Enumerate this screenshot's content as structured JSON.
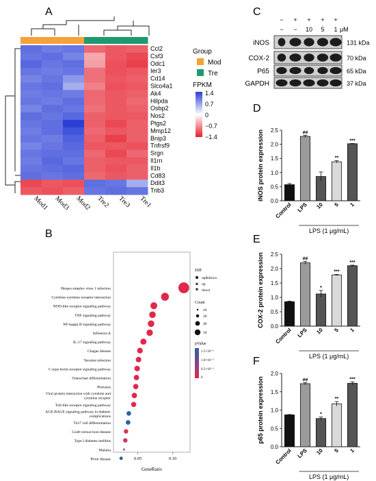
{
  "panels": {
    "a": "A",
    "b": "B",
    "c": "C",
    "d": "D",
    "e": "E",
    "f": "F"
  },
  "colors": {
    "mod": "#f7a13a",
    "tre": "#1f9a6e",
    "heat_high": "#2a3fd6",
    "heat_low": "#e5202e",
    "bar_black": "#111111",
    "bar_gray": "#9b9b9b",
    "bar_dark": "#555555",
    "bar_light": "#d9d9d9",
    "dot": "#e0284b"
  },
  "heatmap": {
    "genes": [
      "Ccl2",
      "Csf3",
      "Odc1",
      "Ier3",
      "Cd14",
      "Slco4a1",
      "Ak4",
      "Hilpda",
      "Osbp2",
      "Nos2",
      "Ptgs2",
      "Mmp12",
      "Bnip3",
      "Tnfrsf9",
      "Srgn",
      "Il1rn",
      "Il1b",
      "Cd83",
      "Ddit3",
      "Trib3"
    ],
    "samples": [
      "Mod1",
      "Mod3",
      "Mod2",
      "Tre2",
      "Tre3",
      "Tre1"
    ],
    "group_title": "Group",
    "group_legend": [
      "Mod",
      "Tre"
    ],
    "fpkm_title": "FPKM",
    "fpkm_ticks": [
      "1.4",
      "0.7",
      "0",
      "−0.7",
      "−1.4"
    ],
    "values": [
      [
        1.05,
        0.95,
        1.0,
        -0.95,
        -1.05,
        -1.0
      ],
      [
        1.0,
        1.05,
        0.9,
        -0.55,
        -1.05,
        -1.15
      ],
      [
        1.1,
        1.0,
        1.05,
        -0.6,
        -1.1,
        -1.2
      ],
      [
        1.0,
        0.95,
        1.0,
        -0.9,
        -1.1,
        -1.05
      ],
      [
        0.9,
        1.0,
        0.75,
        -0.9,
        -1.05,
        -1.0
      ],
      [
        1.0,
        1.05,
        0.6,
        -0.8,
        -1.1,
        -1.05
      ],
      [
        0.95,
        1.0,
        0.95,
        -0.95,
        -1.05,
        -1.0
      ],
      [
        1.0,
        0.95,
        1.05,
        -0.95,
        -1.05,
        -0.95
      ],
      [
        0.9,
        1.05,
        1.0,
        -0.9,
        -1.05,
        -1.0
      ],
      [
        1.05,
        1.0,
        1.1,
        -1.0,
        -1.05,
        -1.05
      ],
      [
        1.0,
        1.05,
        1.4,
        -1.0,
        -1.15,
        -1.0
      ],
      [
        0.95,
        1.05,
        1.25,
        -0.95,
        -1.05,
        -1.0
      ],
      [
        1.0,
        0.95,
        1.15,
        -1.0,
        -1.2,
        -1.0
      ],
      [
        0.9,
        1.0,
        1.1,
        -1.05,
        -1.05,
        -1.1
      ],
      [
        1.0,
        1.05,
        1.05,
        -0.95,
        -1.15,
        -0.95
      ],
      [
        0.95,
        1.1,
        1.0,
        -1.0,
        -1.05,
        -1.05
      ],
      [
        1.0,
        1.05,
        1.1,
        -1.0,
        -1.1,
        -1.0
      ],
      [
        1.05,
        1.0,
        1.05,
        -0.95,
        -1.05,
        -1.0
      ],
      [
        -1.15,
        -1.05,
        -1.1,
        1.05,
        1.0,
        0.6
      ],
      [
        -1.05,
        -1.1,
        -1.0,
        1.0,
        1.05,
        1.0
      ]
    ]
  },
  "blot": {
    "header_row1": [
      "−",
      "+",
      "+",
      "+",
      "+"
    ],
    "header_row2": [
      "−",
      "−",
      "10",
      "5",
      "1"
    ],
    "unit": "μM",
    "bands": [
      {
        "name": "iNOS",
        "kda": "131 kDa"
      },
      {
        "name": "COX-2",
        "kda": "70 kDa"
      },
      {
        "name": "P65",
        "kda": "65 kDa"
      },
      {
        "name": "GAPDH",
        "kda": "37 kDa"
      }
    ]
  },
  "chart_data": [
    {
      "type": "scatter",
      "panel": "B",
      "xlabel": "GeneRatio",
      "xticks": [
        "0.05",
        "0.10"
      ],
      "xlim": [
        0.015,
        0.125
      ],
      "categories": [
        "Herpes simplex virus 1 infection",
        "Cytokine-cytokine receptor interaction",
        "NOD-like receptor signaling pathway",
        "TNF signaling pathway",
        "NF-kappa B signaling pathway",
        "Influenza A",
        "IL-17 signaling pathway",
        "Chagas disease",
        "Yersinia infection",
        "C-type lectin receptor signaling pathway",
        "Osteoclast differentiation",
        "Pertussis",
        "Viral protein interaction with cytokine and cytokine receptor",
        "Toll-like receptor signaling pathway",
        "AGE-RAGE signaling pathway in diabetic complications",
        "Th17 cell differentiation",
        "Graft-versus-host disease",
        "Type I diabetes mellitus",
        "Malaria",
        "Prion disease"
      ],
      "gene_ratio": [
        0.116,
        0.089,
        0.073,
        0.071,
        0.069,
        0.067,
        0.058,
        0.053,
        0.051,
        0.049,
        0.048,
        0.047,
        0.045,
        0.044,
        0.037,
        0.036,
        0.033,
        0.032,
        0.03,
        0.026
      ],
      "count": [
        55,
        26,
        18,
        16,
        16,
        15,
        13,
        11,
        10,
        10,
        9,
        9,
        9,
        8,
        6,
        6,
        5,
        5,
        3,
        2
      ],
      "pvalue_color": [
        "#e0284b",
        "#e0284b",
        "#e0284b",
        "#e0284b",
        "#e0284b",
        "#e0284b",
        "#e0284b",
        "#e0284b",
        "#e0284b",
        "#e0284b",
        "#e0284b",
        "#e0284b",
        "#e0284b",
        "#e0284b",
        "#2a62a8",
        "#2a62a8",
        "#d73356",
        "#cc3a5f",
        "#6f4f9a",
        "#3a5aa0"
      ],
      "marker": [
        "circle",
        "circle",
        "circle",
        "circle",
        "circle",
        "circle",
        "circle",
        "circle",
        "circle",
        "circle",
        "circle",
        "circle",
        "circle",
        "circle",
        "circle",
        "circle",
        "circle",
        "circle",
        "triangle",
        "circle"
      ],
      "legend_diff": {
        "title": "Diff",
        "items": [
          "up&down",
          "up",
          "down"
        ]
      },
      "legend_count": {
        "title": "Count",
        "items": [
          "10",
          "20",
          "40",
          "50"
        ]
      },
      "legend_pvalue": {
        "title": "pValue",
        "ticks": [
          "1.5×10⁻⁶",
          "1.0×10⁻⁶",
          "0.5×10⁻⁶",
          "0"
        ]
      }
    },
    {
      "type": "bar",
      "panel": "D",
      "ylabel": "iNOS protein expression",
      "xlabel": "LPS (1 μg/mL)",
      "categories": [
        "Control",
        "LPS",
        "10",
        "5",
        "1"
      ],
      "values": [
        0.57,
        2.28,
        0.86,
        1.38,
        2.02
      ],
      "errors": [
        0.04,
        0.04,
        0.16,
        0.04,
        0.01
      ],
      "sig": [
        "",
        "##",
        "",
        "**",
        "***"
      ],
      "ylim": [
        0,
        2.5
      ],
      "yticks": [
        "0.0",
        "0.5",
        "1.0",
        "1.5",
        "2.0",
        "2.5"
      ]
    },
    {
      "type": "bar",
      "panel": "E",
      "ylabel": "COX-2 protein expression",
      "xlabel": "LPS (1 μg/mL)",
      "categories": [
        "Control",
        "LPS",
        "10",
        "5",
        "1"
      ],
      "values": [
        0.85,
        2.2,
        1.12,
        1.78,
        2.1
      ],
      "errors": [
        0.02,
        0.05,
        0.12,
        0.02,
        0.02
      ],
      "sig": [
        "",
        "##",
        "*",
        "***",
        "***"
      ],
      "ylim": [
        0,
        2.5
      ],
      "yticks": [
        "0.0",
        "0.5",
        "1.0",
        "1.5",
        "2.0",
        "2.5"
      ]
    },
    {
      "type": "bar",
      "panel": "F",
      "ylabel": "p65 protein expression",
      "xlabel": "LPS (1 μg/mL)",
      "categories": [
        "Control",
        "LPS",
        "10",
        "5",
        "1"
      ],
      "values": [
        0.87,
        1.72,
        0.77,
        1.17,
        1.73
      ],
      "errors": [
        0.01,
        0.03,
        0.04,
        0.06,
        0.04
      ],
      "sig": [
        "",
        "##",
        "*",
        "**",
        "***"
      ],
      "ylim": [
        0,
        2.0
      ],
      "yticks": [
        "0.0",
        "0.5",
        "1.0",
        "1.5",
        "2.0"
      ]
    }
  ]
}
